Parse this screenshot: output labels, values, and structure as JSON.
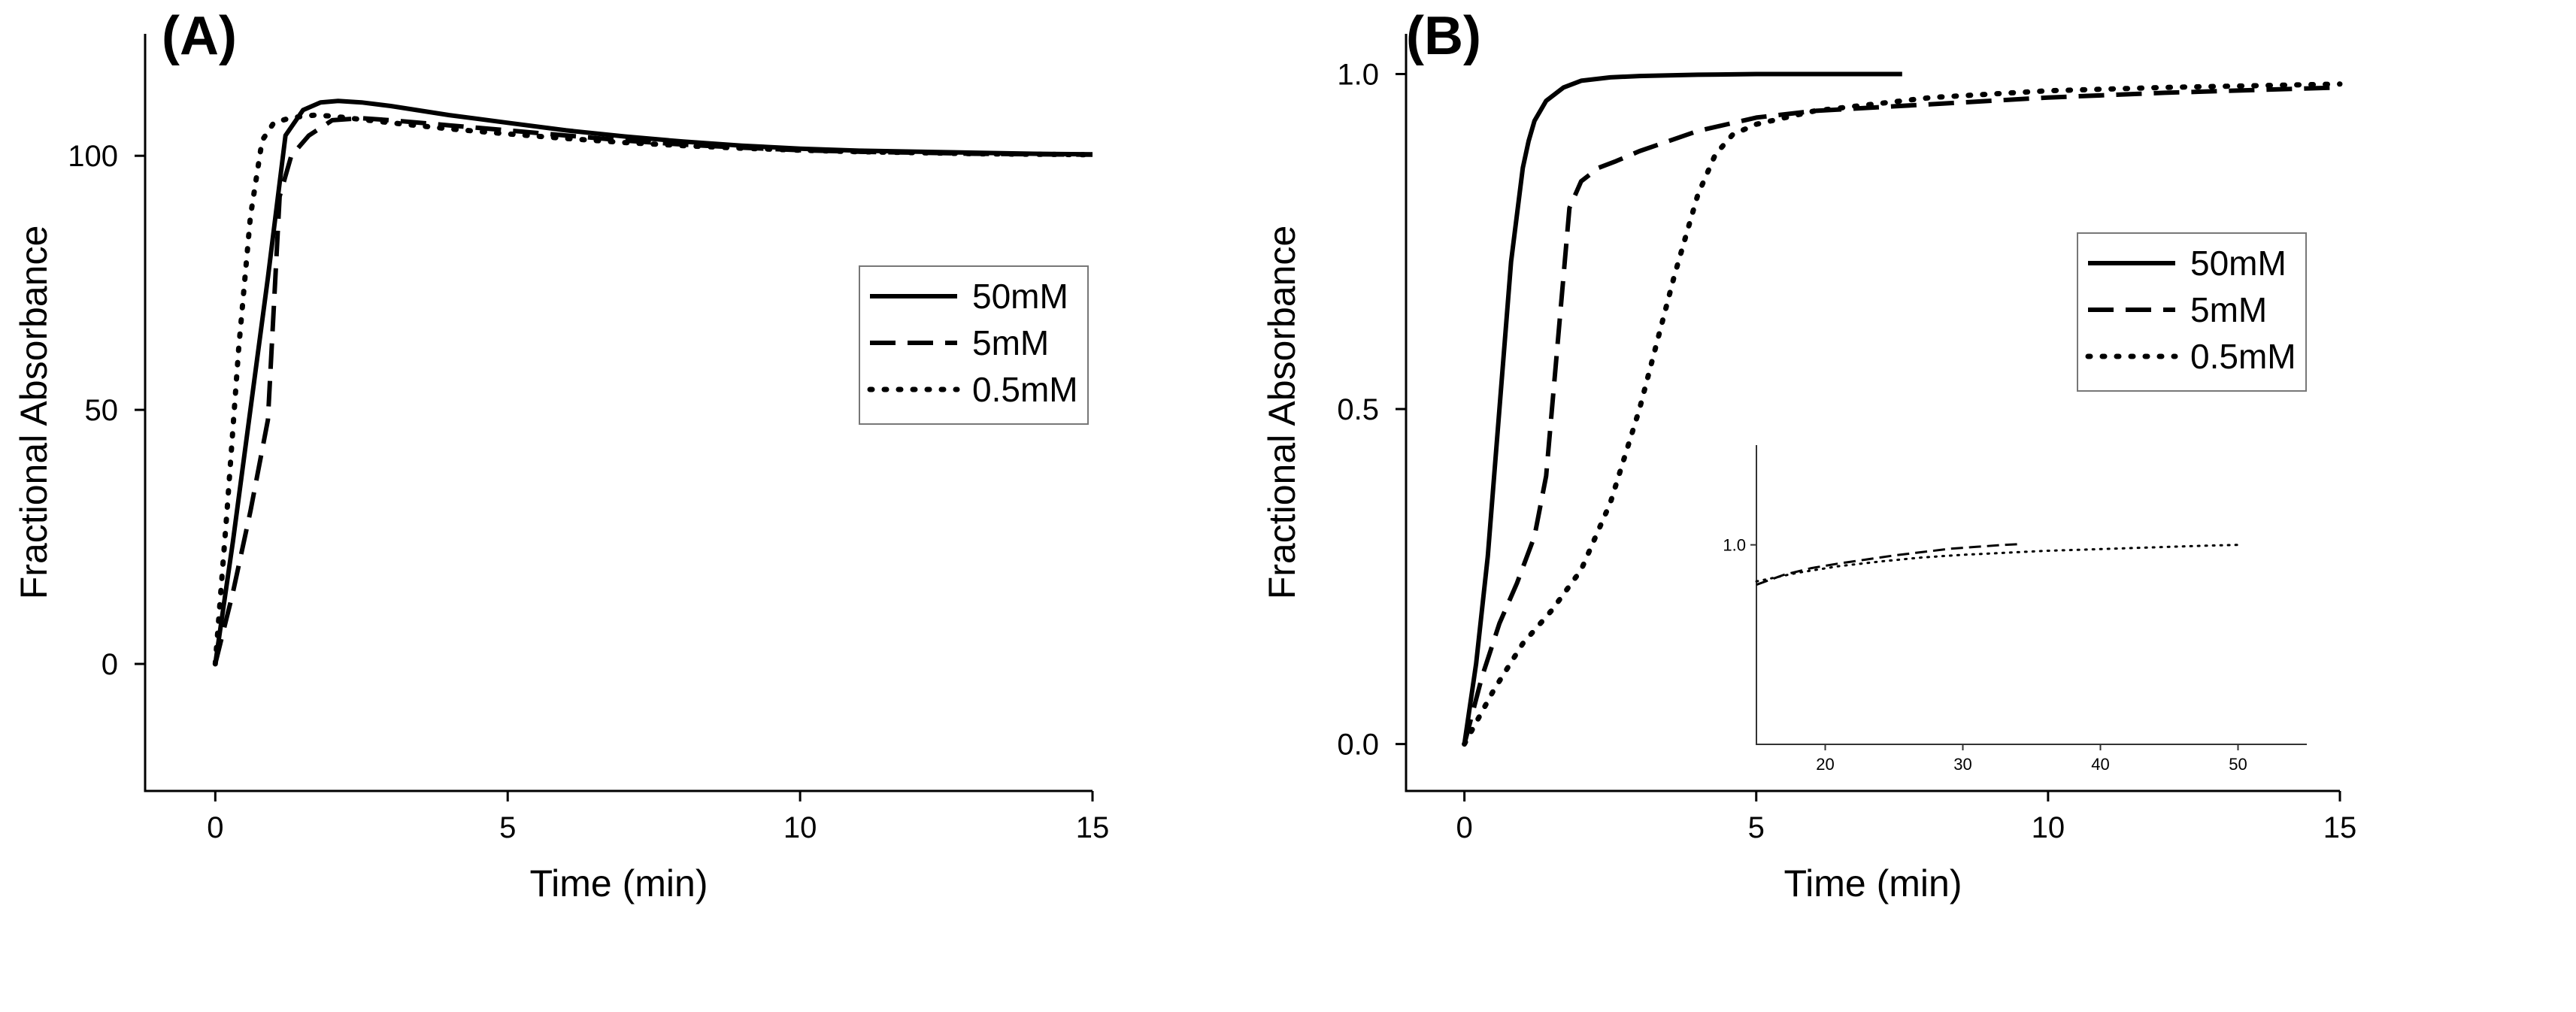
{
  "chart_data": [
    {
      "type": "line",
      "panel_label": "(A)",
      "xlabel": "Time (min)",
      "ylabel": "Fractional Absorbance",
      "xlim": [
        -1.2,
        15
      ],
      "ylim": [
        -25,
        124
      ],
      "xticks": [
        0,
        5,
        10,
        15
      ],
      "yticks": [
        0,
        50,
        100
      ],
      "legend": {
        "position": "right"
      },
      "series": [
        {
          "name": "50mM",
          "style": "solid",
          "x": [
            0,
            0.3,
            0.6,
            0.9,
            1.2,
            1.5,
            1.8,
            2.1,
            2.5,
            3,
            4,
            5,
            6,
            7,
            8,
            9,
            10,
            11,
            12,
            13,
            14,
            15
          ],
          "y": [
            0,
            24,
            50,
            76,
            104,
            109,
            110.5,
            110.8,
            110.5,
            109.8,
            108,
            106.5,
            105,
            103.8,
            102.8,
            102,
            101.4,
            101,
            100.8,
            100.6,
            100.4,
            100.3
          ]
        },
        {
          "name": "5mM",
          "style": "dashed",
          "x": [
            0,
            0.3,
            0.6,
            0.9,
            1.1,
            1.3,
            1.6,
            2,
            2.5,
            3,
            4,
            5,
            6,
            7,
            8,
            9,
            10,
            11,
            12,
            13,
            14,
            15
          ],
          "y": [
            0,
            14,
            30,
            48,
            92,
            100,
            104,
            107,
            107.4,
            107,
            106,
            105,
            104,
            103,
            102.2,
            101.6,
            101.1,
            100.8,
            100.6,
            100.4,
            100.3,
            100.2
          ]
        },
        {
          "name": "0.5mM",
          "style": "dotted",
          "x": [
            0,
            0.2,
            0.4,
            0.6,
            0.8,
            1,
            1.3,
            1.7,
            2,
            3,
            4,
            5,
            6,
            7,
            8,
            9,
            10,
            11,
            12,
            13,
            14,
            15
          ],
          "y": [
            0,
            30,
            62,
            88,
            103,
            106.5,
            107.5,
            108,
            107.8,
            106.5,
            105.3,
            104.3,
            103.4,
            102.6,
            102,
            101.5,
            101.1,
            100.8,
            100.6,
            100.4,
            100.3,
            100.2
          ]
        }
      ]
    },
    {
      "type": "line",
      "panel_label": "(B)",
      "xlabel": "Time (min)",
      "ylabel": "Fractional Absorbance",
      "xlim": [
        -1,
        15
      ],
      "ylim": [
        -0.07,
        1.06
      ],
      "xticks": [
        0,
        5,
        10,
        15
      ],
      "yticks": [
        0.0,
        0.5,
        1.0
      ],
      "ytick_labels": [
        "0.0",
        "0.5",
        "1.0"
      ],
      "legend": {
        "position": "right"
      },
      "series": [
        {
          "name": "50mM",
          "style": "solid",
          "x": [
            0,
            0.2,
            0.4,
            0.6,
            0.8,
            1,
            1.1,
            1.2,
            1.4,
            1.7,
            2,
            2.5,
            3,
            4,
            5,
            6,
            7,
            7.5
          ],
          "y": [
            0,
            0.12,
            0.28,
            0.5,
            0.72,
            0.86,
            0.9,
            0.93,
            0.96,
            0.98,
            0.99,
            0.995,
            0.997,
            0.999,
            1.0,
            1.0,
            1.0,
            1.0
          ]
        },
        {
          "name": "5mM",
          "style": "dashed",
          "x": [
            0,
            0.3,
            0.6,
            0.9,
            1.2,
            1.4,
            1.6,
            1.8,
            2,
            2.3,
            2.6,
            3,
            3.5,
            4,
            5,
            6,
            8,
            10,
            12,
            15
          ],
          "y": [
            0,
            0.1,
            0.18,
            0.24,
            0.31,
            0.4,
            0.6,
            0.8,
            0.84,
            0.86,
            0.87,
            0.885,
            0.9,
            0.915,
            0.935,
            0.945,
            0.955,
            0.965,
            0.972,
            0.98
          ]
        },
        {
          "name": "0.5mM",
          "style": "dotted",
          "x": [
            0,
            0.5,
            1,
            1.5,
            2,
            2.5,
            3,
            3.3,
            3.6,
            4,
            4.3,
            4.6,
            5,
            6,
            8,
            10,
            12,
            15
          ],
          "y": [
            0,
            0.08,
            0.15,
            0.2,
            0.26,
            0.36,
            0.5,
            0.6,
            0.7,
            0.82,
            0.88,
            0.91,
            0.925,
            0.945,
            0.965,
            0.975,
            0.98,
            0.985
          ]
        }
      ],
      "inset": {
        "xlim": [
          15,
          55
        ],
        "ylim": [
          0.7,
          1.15
        ],
        "xticks": [
          20,
          30,
          40,
          50
        ],
        "yticks": [
          1.0
        ],
        "ytick_labels": [
          "1.0"
        ],
        "series": [
          {
            "name": "5mM",
            "style": "dashed",
            "x": [
              15,
              17,
              19,
              21,
              23,
              25,
              27,
              29,
              31,
              33,
              34
            ],
            "y": [
              0.94,
              0.955,
              0.965,
              0.972,
              0.978,
              0.984,
              0.989,
              0.994,
              0.997,
              1.0,
              1.001
            ]
          },
          {
            "name": "0.5mM",
            "style": "dotted",
            "x": [
              15,
              18,
              21,
              24,
              27,
              30,
              33,
              36,
              39,
              42,
              45,
              48,
              50
            ],
            "y": [
              0.945,
              0.958,
              0.968,
              0.975,
              0.981,
              0.985,
              0.988,
              0.991,
              0.993,
              0.995,
              0.997,
              0.999,
              1.0
            ]
          }
        ]
      }
    }
  ]
}
